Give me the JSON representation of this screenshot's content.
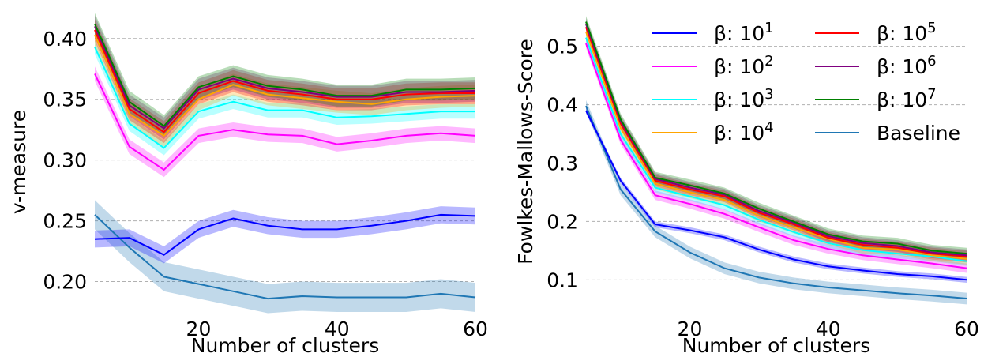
{
  "chart_data": [
    {
      "type": "line",
      "title": "",
      "xlabel": "Number of clusters",
      "ylabel": "v-measure",
      "xlim": [
        5,
        60
      ],
      "ylim": [
        0.175,
        0.42
      ],
      "xticks": [
        20,
        40,
        60
      ],
      "yticks": [
        0.2,
        0.25,
        0.3,
        0.35,
        0.4
      ],
      "ytick_labels": [
        "0.20",
        "0.25",
        "0.30",
        "0.35",
        "0.40"
      ],
      "grid": "horizontal dashed",
      "x": [
        5,
        10,
        15,
        20,
        25,
        30,
        35,
        40,
        45,
        50,
        55,
        60
      ],
      "series": [
        {
          "name": "β: 10^1",
          "color": "#0000ff",
          "values": [
            0.235,
            0.236,
            0.222,
            0.243,
            0.252,
            0.246,
            0.243,
            0.243,
            0.246,
            0.25,
            0.255,
            0.254
          ],
          "band": 0.007
        },
        {
          "name": "β: 10^2",
          "color": "#ff00ff",
          "values": [
            0.371,
            0.311,
            0.292,
            0.32,
            0.325,
            0.321,
            0.32,
            0.313,
            0.316,
            0.32,
            0.322,
            0.32
          ],
          "band": 0.006
        },
        {
          "name": "β: 10^3",
          "color": "#00ffff",
          "values": [
            0.393,
            0.33,
            0.31,
            0.34,
            0.348,
            0.341,
            0.341,
            0.335,
            0.336,
            0.338,
            0.34,
            0.34
          ],
          "band": 0.006
        },
        {
          "name": "β: 10^4",
          "color": "#ffa500",
          "values": [
            0.403,
            0.338,
            0.32,
            0.35,
            0.362,
            0.354,
            0.351,
            0.348,
            0.346,
            0.35,
            0.352,
            0.353
          ],
          "band": 0.009
        },
        {
          "name": "β: 10^5",
          "color": "#ff0000",
          "values": [
            0.407,
            0.342,
            0.323,
            0.355,
            0.365,
            0.357,
            0.354,
            0.35,
            0.35,
            0.354,
            0.355,
            0.355
          ],
          "band": 0.009
        },
        {
          "name": "β: 10^6",
          "color": "#800080",
          "values": [
            0.41,
            0.345,
            0.326,
            0.358,
            0.367,
            0.359,
            0.356,
            0.352,
            0.352,
            0.356,
            0.356,
            0.357
          ],
          "band": 0.009
        },
        {
          "name": "β: 10^7",
          "color": "#008000",
          "values": [
            0.412,
            0.348,
            0.328,
            0.36,
            0.369,
            0.361,
            0.358,
            0.353,
            0.353,
            0.358,
            0.358,
            0.359
          ],
          "band": 0.009
        },
        {
          "name": "Baseline",
          "color": "#1f77b4",
          "values": [
            0.255,
            0.228,
            0.204,
            0.198,
            0.192,
            0.186,
            0.188,
            0.187,
            0.187,
            0.187,
            0.19,
            0.187
          ],
          "band": 0.012
        }
      ]
    },
    {
      "type": "line",
      "title": "",
      "xlabel": "Number of clusters",
      "ylabel": "Fowlkes-Mallows-Score",
      "xlim": [
        5,
        60
      ],
      "ylim": [
        0.045,
        0.555
      ],
      "xticks": [
        20,
        40,
        60
      ],
      "yticks": [
        0.1,
        0.2,
        0.3,
        0.4,
        0.5
      ],
      "ytick_labels": [
        "0.1",
        "0.2",
        "0.3",
        "0.4",
        "0.5"
      ],
      "grid": "horizontal dashed",
      "x": [
        5,
        10,
        15,
        20,
        25,
        30,
        35,
        40,
        45,
        50,
        55,
        60
      ],
      "series": [
        {
          "name": "β: 10^1",
          "color": "#0000ff",
          "values": [
            0.39,
            0.27,
            0.195,
            0.185,
            0.173,
            0.152,
            0.135,
            0.123,
            0.116,
            0.11,
            0.106,
            0.1
          ],
          "band": 0.005
        },
        {
          "name": "β: 10^2",
          "color": "#ff00ff",
          "values": [
            0.505,
            0.34,
            0.245,
            0.23,
            0.213,
            0.19,
            0.168,
            0.153,
            0.142,
            0.135,
            0.128,
            0.12
          ],
          "band": 0.008
        },
        {
          "name": "β: 10^3",
          "color": "#00ffff",
          "values": [
            0.515,
            0.35,
            0.258,
            0.243,
            0.228,
            0.203,
            0.182,
            0.163,
            0.151,
            0.145,
            0.14,
            0.132
          ],
          "band": 0.008
        },
        {
          "name": "β: 10^4",
          "color": "#ffa500",
          "values": [
            0.525,
            0.36,
            0.265,
            0.25,
            0.237,
            0.21,
            0.19,
            0.17,
            0.155,
            0.152,
            0.142,
            0.136
          ],
          "band": 0.01
        },
        {
          "name": "β: 10^5",
          "color": "#ff0000",
          "values": [
            0.533,
            0.368,
            0.27,
            0.255,
            0.243,
            0.215,
            0.195,
            0.172,
            0.16,
            0.155,
            0.145,
            0.14
          ],
          "band": 0.01
        },
        {
          "name": "β: 10^6",
          "color": "#800080",
          "values": [
            0.538,
            0.372,
            0.273,
            0.258,
            0.246,
            0.218,
            0.198,
            0.175,
            0.163,
            0.158,
            0.147,
            0.142
          ],
          "band": 0.01
        },
        {
          "name": "β: 10^7",
          "color": "#008000",
          "values": [
            0.542,
            0.375,
            0.275,
            0.262,
            0.248,
            0.222,
            0.2,
            0.178,
            0.166,
            0.162,
            0.15,
            0.145
          ],
          "band": 0.01
        },
        {
          "name": "Baseline",
          "color": "#1f77b4",
          "values": [
            0.398,
            0.255,
            0.183,
            0.147,
            0.12,
            0.104,
            0.094,
            0.087,
            0.082,
            0.077,
            0.073,
            0.068
          ],
          "band": 0.01
        }
      ]
    }
  ],
  "legend": {
    "placement": "top-right of right panel",
    "entries": [
      {
        "prefix": "β: 10",
        "exp": "1",
        "color": "#0000ff"
      },
      {
        "prefix": "β: 10",
        "exp": "2",
        "color": "#ff00ff"
      },
      {
        "prefix": "β: 10",
        "exp": "3",
        "color": "#00ffff"
      },
      {
        "prefix": "β: 10",
        "exp": "4",
        "color": "#ffa500"
      },
      {
        "prefix": "β: 10",
        "exp": "5",
        "color": "#ff0000"
      },
      {
        "prefix": "β: 10",
        "exp": "6",
        "color": "#800080"
      },
      {
        "prefix": "β: 10",
        "exp": "7",
        "color": "#008000"
      },
      {
        "prefix": "Baseline",
        "exp": "",
        "color": "#1f77b4"
      }
    ]
  }
}
